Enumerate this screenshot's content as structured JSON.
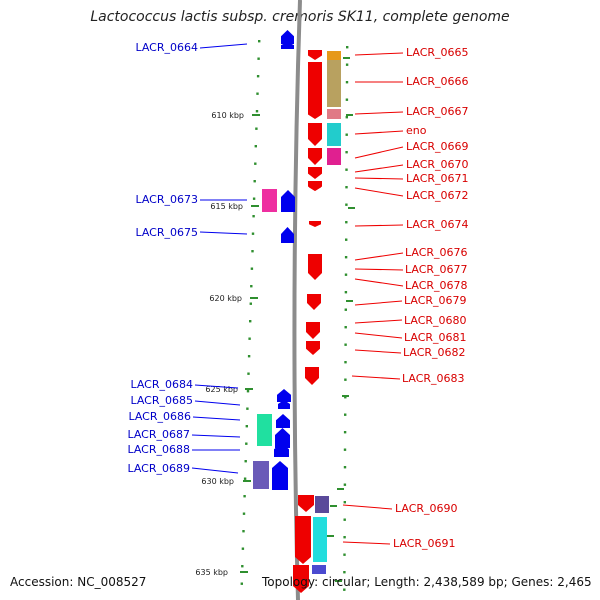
{
  "title": "Lactococcus lactis subsp. cremoris SK11, complete genome",
  "footer": {
    "accession": "Accession: NC_008527",
    "summary": "Topology: circular; Length: 2,438,589 bp; Genes: 2,465"
  },
  "colors": {
    "forward_cds": "#0000ee",
    "reverse_cds": "#ee0000",
    "forward_label": "#0000c8",
    "reverse_label": "#d80000",
    "backbone": "#8c8c8c",
    "dots": "#2f8f2f"
  },
  "scale_ticks": [
    "610 kbp",
    "615 kbp",
    "620 kbp",
    "625 kbp",
    "630 kbp",
    "635 kbp"
  ],
  "forward_genes": [
    "LACR_0664",
    "LACR_0673",
    "LACR_0675",
    "LACR_0684",
    "LACR_0685",
    "LACR_0686",
    "LACR_0687",
    "LACR_0688",
    "LACR_0689"
  ],
  "reverse_genes": [
    "LACR_0665",
    "LACR_0666",
    "LACR_0667",
    "eno",
    "LACR_0669",
    "LACR_0670",
    "LACR_0671",
    "LACR_0672",
    "LACR_0674",
    "LACR_0676",
    "LACR_0677",
    "LACR_0678",
    "LACR_0679",
    "LACR_0680",
    "LACR_0681",
    "LACR_0682",
    "LACR_0683",
    "LACR_0690",
    "LACR_0691"
  ]
}
